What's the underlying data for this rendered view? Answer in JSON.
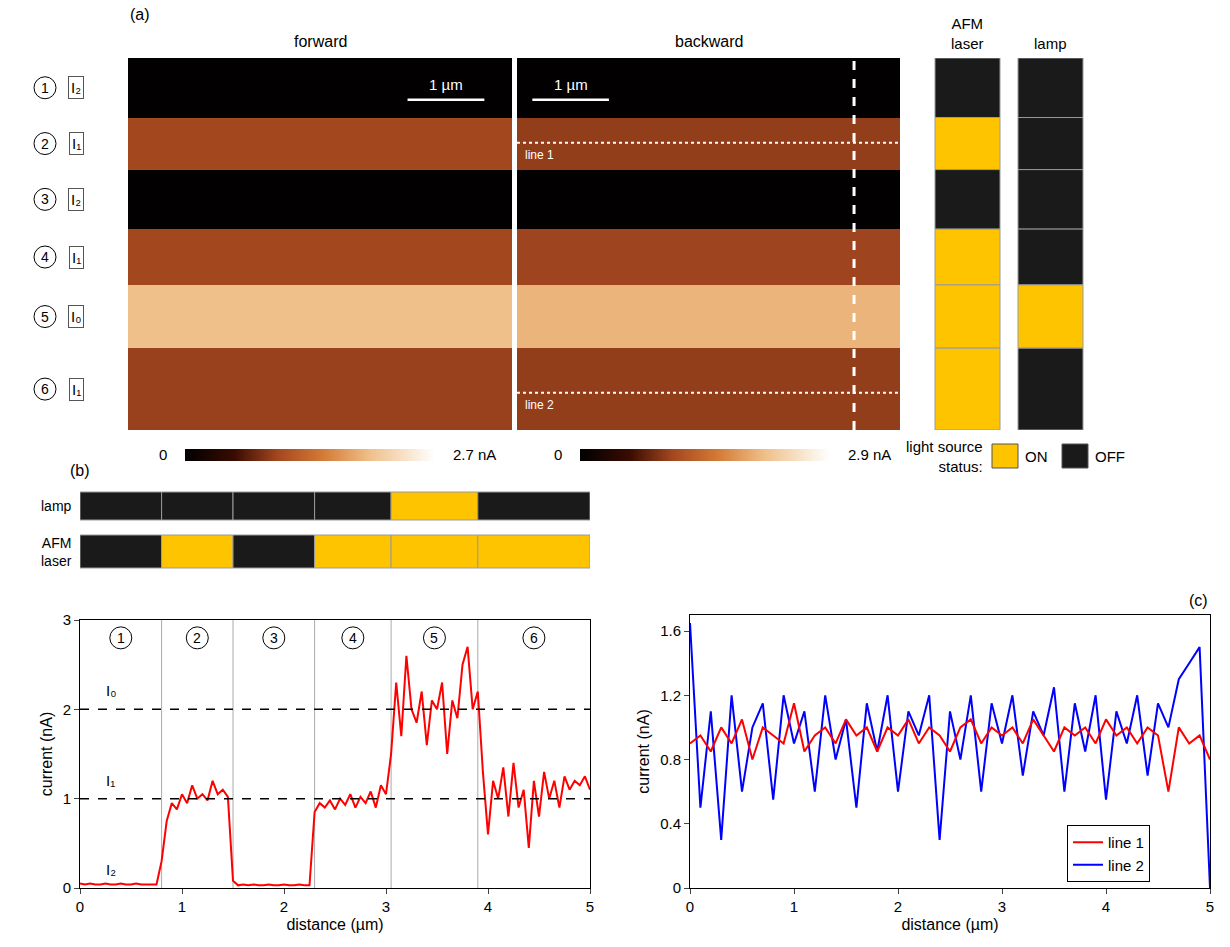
{
  "chart_data": [
    {
      "type": "heatmap",
      "panel_label": "(a)",
      "title": "forward",
      "x_edges": [
        0,
        5
      ],
      "y_edges": [
        0,
        0.8,
        1.5,
        2.3,
        3.05,
        3.9,
        5
      ],
      "values": [
        0.02,
        1.0,
        0.02,
        1.0,
        2.0,
        0.95
      ],
      "xlim": [
        0,
        5
      ],
      "ylim": [
        5,
        0
      ],
      "tick_labels": false,
      "band_numbers": [
        "1",
        "2",
        "3",
        "4",
        "5",
        "6"
      ],
      "band_labels": [
        "I₂",
        "I₁",
        "I₂",
        "I₁",
        "I₀",
        "I₁"
      ],
      "colorbar": {
        "range": [
          0,
          2.7
        ],
        "ticks": [
          0,
          {
            "value": 2.7,
            "label": "2.7 nA"
          }
        ]
      },
      "scale_bar": {
        "label": "1 µm",
        "length": 1
      }
    },
    {
      "type": "heatmap",
      "title": "backward",
      "x_edges": [
        0,
        5
      ],
      "y_edges": [
        0,
        0.8,
        1.5,
        2.3,
        3.05,
        3.9,
        5
      ],
      "values": [
        0.02,
        1.0,
        0.02,
        1.05,
        2.05,
        1.0
      ],
      "xlim": [
        0,
        5
      ],
      "ylim": [
        5,
        0
      ],
      "tick_labels": false,
      "colorbar": {
        "range": [
          0,
          2.9
        ],
        "ticks": [
          0,
          {
            "value": 2.9,
            "label": "2.9 nA"
          }
        ]
      },
      "scale_bar": {
        "label": "1 µm",
        "length": 1
      },
      "profile_x": 4.4,
      "profile_lines": [
        {
          "label": "line 1",
          "y": 1.14
        },
        {
          "label": "line 2",
          "y": 4.5
        }
      ]
    },
    {
      "type": "status",
      "legend_title": "light source status:",
      "state_legend": [
        {
          "label": "ON",
          "color": "#FFC400"
        },
        {
          "label": "OFF",
          "color": "#1A1A1A"
        }
      ],
      "sources": [
        {
          "name": "AFM laser",
          "states": [
            "OFF",
            "ON",
            "OFF",
            "ON",
            "ON",
            "ON"
          ]
        },
        {
          "name": "lamp",
          "states": [
            "OFF",
            "OFF",
            "OFF",
            "OFF",
            "ON",
            "OFF"
          ]
        }
      ]
    },
    {
      "type": "line",
      "panel_label": "(b)",
      "color": "#FF0000",
      "x": [
        0,
        0.05,
        0.1,
        0.15,
        0.2,
        0.25,
        0.3,
        0.35,
        0.4,
        0.45,
        0.5,
        0.55,
        0.6,
        0.65,
        0.7,
        0.75,
        0.8,
        0.85,
        0.9,
        0.95,
        1,
        1.05,
        1.1,
        1.15,
        1.2,
        1.25,
        1.3,
        1.35,
        1.4,
        1.45,
        1.5,
        1.55,
        1.6,
        1.65,
        1.7,
        1.75,
        1.8,
        1.85,
        1.9,
        1.95,
        2,
        2.05,
        2.1,
        2.15,
        2.2,
        2.25,
        2.3,
        2.35,
        2.4,
        2.45,
        2.5,
        2.55,
        2.6,
        2.65,
        2.7,
        2.75,
        2.8,
        2.85,
        2.9,
        2.95,
        3,
        3.05,
        3.1,
        3.15,
        3.2,
        3.25,
        3.3,
        3.35,
        3.4,
        3.45,
        3.5,
        3.55,
        3.6,
        3.65,
        3.7,
        3.75,
        3.8,
        3.85,
        3.9,
        3.95,
        4,
        4.05,
        4.1,
        4.15,
        4.2,
        4.25,
        4.3,
        4.35,
        4.4,
        4.45,
        4.5,
        4.55,
        4.6,
        4.65,
        4.7,
        4.75,
        4.8,
        4.85,
        4.9,
        4.95,
        5
      ],
      "values": [
        0.05,
        0.04,
        0.05,
        0.04,
        0.04,
        0.05,
        0.04,
        0.04,
        0.05,
        0.04,
        0.04,
        0.05,
        0.04,
        0.04,
        0.04,
        0.04,
        0.3,
        0.75,
        0.95,
        0.88,
        1.05,
        0.95,
        1.15,
        1.0,
        1.05,
        0.98,
        1.2,
        1.05,
        1.1,
        1.02,
        0.08,
        0.03,
        0.04,
        0.03,
        0.04,
        0.03,
        0.03,
        0.04,
        0.03,
        0.03,
        0.04,
        0.03,
        0.03,
        0.04,
        0.03,
        0.03,
        0.85,
        0.95,
        0.9,
        0.98,
        0.88,
        1.0,
        0.93,
        1.05,
        0.9,
        1.02,
        0.95,
        1.08,
        0.9,
        1.15,
        1.05,
        1.5,
        2.3,
        1.7,
        2.6,
        2.0,
        1.85,
        2.2,
        1.6,
        2.1,
        2.0,
        2.3,
        1.5,
        2.1,
        1.9,
        2.5,
        2.7,
        2.0,
        2.2,
        1.3,
        0.6,
        1.2,
        1.0,
        1.35,
        0.8,
        1.4,
        0.9,
        1.1,
        0.45,
        1.2,
        0.8,
        1.3,
        1.0,
        1.2,
        0.9,
        1.25,
        1.1,
        1.2,
        1.15,
        1.25,
        1.1
      ],
      "xlim": [
        0,
        5
      ],
      "ylim": [
        0,
        3
      ],
      "xticks": [
        0,
        1,
        2,
        3,
        4,
        5
      ],
      "yticks": [
        0,
        1,
        2,
        3
      ],
      "x_label": "distance (µm)",
      "y_label": "current (nA)",
      "segment_edges": [
        0,
        0.8,
        1.5,
        2.3,
        3.05,
        3.9,
        5
      ],
      "segment_numbers": [
        "1",
        "2",
        "3",
        "4",
        "5",
        "6"
      ],
      "reference_levels": [
        {
          "label": "I₀",
          "value": 2,
          "line_style": "dashed"
        },
        {
          "label": "I₁",
          "value": 1,
          "line_style": "dashed"
        },
        {
          "label": "I₂",
          "value": 0,
          "line_style": "none"
        }
      ]
    },
    {
      "type": "line",
      "panel_label": "(c)",
      "x": [
        0,
        0.1,
        0.2,
        0.3,
        0.4,
        0.5,
        0.6,
        0.7,
        0.8,
        0.9,
        1,
        1.1,
        1.2,
        1.3,
        1.4,
        1.5,
        1.6,
        1.7,
        1.8,
        1.9,
        2,
        2.1,
        2.2,
        2.3,
        2.4,
        2.5,
        2.6,
        2.7,
        2.8,
        2.9,
        3,
        3.1,
        3.2,
        3.3,
        3.4,
        3.5,
        3.6,
        3.7,
        3.8,
        3.9,
        4,
        4.1,
        4.2,
        4.3,
        4.4,
        4.5,
        4.6,
        4.7,
        4.8,
        4.9,
        5
      ],
      "series": [
        {
          "name": "line 1",
          "color": "#FF0000",
          "values": [
            0.9,
            0.95,
            0.85,
            1.0,
            0.9,
            1.05,
            0.8,
            1.0,
            0.95,
            0.9,
            1.15,
            0.85,
            0.95,
            1.0,
            0.9,
            1.05,
            0.95,
            1.0,
            0.85,
            1.0,
            0.95,
            1.05,
            0.9,
            1.0,
            0.95,
            0.85,
            1.0,
            1.05,
            0.9,
            1.0,
            0.95,
            1.0,
            0.9,
            1.05,
            0.95,
            0.85,
            1.0,
            0.95,
            1.0,
            0.9,
            1.05,
            0.95,
            1.0,
            0.9,
            1.0,
            0.95,
            0.6,
            1.0,
            0.9,
            0.95,
            0.8
          ]
        },
        {
          "name": "line 2",
          "color": "#0000FF",
          "values": [
            1.65,
            0.5,
            1.1,
            0.3,
            1.2,
            0.6,
            1.0,
            1.15,
            0.55,
            1.2,
            0.9,
            1.1,
            0.6,
            1.2,
            0.8,
            1.05,
            0.5,
            1.15,
            0.85,
            1.2,
            0.6,
            1.1,
            0.95,
            1.2,
            0.3,
            1.1,
            0.8,
            1.2,
            0.6,
            1.15,
            0.9,
            1.2,
            0.7,
            1.1,
            0.95,
            1.25,
            0.6,
            1.15,
            0.85,
            1.2,
            0.55,
            1.1,
            0.9,
            1.2,
            0.7,
            1.15,
            1.0,
            1.3,
            1.4,
            1.5,
            0
          ]
        }
      ],
      "xlim": [
        0,
        5
      ],
      "ylim": [
        0,
        1.7
      ],
      "xticks": [
        0,
        1,
        2,
        3,
        4,
        5
      ],
      "yticks": [
        0,
        0.4,
        0.8,
        1.2,
        1.6
      ],
      "x_label": "distance (µm)",
      "y_label": "current (nA)",
      "legend": "lower right"
    }
  ]
}
